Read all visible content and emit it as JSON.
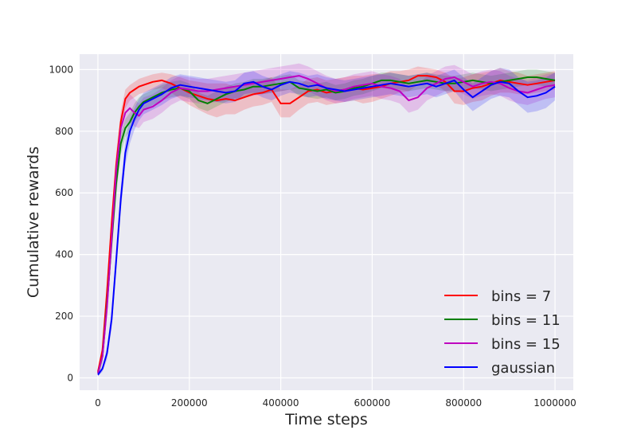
{
  "chart_data": {
    "type": "line",
    "title": "",
    "xlabel": "Time steps",
    "ylabel": "Cumulative rewards",
    "xlim": [
      -40000,
      1040000
    ],
    "ylim": [
      -40,
      1050
    ],
    "x_ticks": [
      0,
      200000,
      400000,
      600000,
      800000,
      1000000
    ],
    "x_tick_labels": [
      "0",
      "200000",
      "400000",
      "600000",
      "800000",
      "1000000"
    ],
    "y_ticks": [
      0,
      200,
      400,
      600,
      800,
      1000
    ],
    "y_tick_labels": [
      "0",
      "200",
      "400",
      "600",
      "800",
      "1000"
    ],
    "grid": true,
    "background": "#EAEAF2",
    "legend_position": "lower-right",
    "x": [
      0,
      10000,
      20000,
      30000,
      40000,
      50000,
      60000,
      70000,
      80000,
      90000,
      100000,
      120000,
      140000,
      160000,
      180000,
      200000,
      220000,
      240000,
      260000,
      280000,
      300000,
      320000,
      340000,
      360000,
      380000,
      400000,
      420000,
      440000,
      460000,
      480000,
      500000,
      520000,
      540000,
      560000,
      580000,
      600000,
      620000,
      640000,
      660000,
      680000,
      700000,
      720000,
      740000,
      760000,
      780000,
      800000,
      820000,
      840000,
      860000,
      880000,
      900000,
      920000,
      940000,
      960000,
      980000,
      1000000
    ],
    "series": [
      {
        "name": "bins = 7",
        "color": "#FF0000",
        "values": [
          20,
          90,
          280,
          500,
          690,
          830,
          905,
          925,
          935,
          945,
          950,
          960,
          965,
          955,
          940,
          925,
          915,
          905,
          900,
          905,
          900,
          910,
          920,
          925,
          935,
          890,
          890,
          910,
          930,
          935,
          925,
          930,
          935,
          940,
          935,
          940,
          945,
          955,
          960,
          965,
          980,
          980,
          975,
          960,
          930,
          930,
          940,
          945,
          955,
          965,
          960,
          955,
          950,
          955,
          960,
          965
        ],
        "band": [
          10,
          20,
          30,
          40,
          40,
          35,
          30,
          25,
          25,
          25,
          25,
          25,
          25,
          30,
          35,
          40,
          45,
          50,
          55,
          50,
          45,
          40,
          40,
          40,
          40,
          45,
          45,
          40,
          40,
          40,
          40,
          40,
          40,
          40,
          45,
          45,
          40,
          40,
          35,
          35,
          30,
          25,
          25,
          30,
          40,
          45,
          45,
          45,
          40,
          40,
          35,
          35,
          30,
          30,
          30,
          30
        ]
      },
      {
        "name": "bins = 11",
        "color": "#008000",
        "values": [
          15,
          70,
          240,
          440,
          630,
          760,
          810,
          830,
          860,
          880,
          895,
          910,
          925,
          935,
          940,
          930,
          900,
          890,
          905,
          920,
          930,
          935,
          945,
          945,
          950,
          955,
          960,
          940,
          935,
          930,
          935,
          925,
          930,
          940,
          945,
          955,
          965,
          965,
          960,
          955,
          960,
          965,
          960,
          955,
          955,
          960,
          965,
          960,
          955,
          960,
          965,
          970,
          975,
          975,
          970,
          965
        ],
        "band": [
          10,
          20,
          30,
          40,
          40,
          35,
          30,
          30,
          30,
          30,
          25,
          25,
          25,
          25,
          25,
          25,
          25,
          25,
          25,
          25,
          25,
          25,
          25,
          25,
          25,
          25,
          25,
          25,
          25,
          25,
          25,
          25,
          25,
          25,
          25,
          25,
          25,
          25,
          25,
          25,
          25,
          25,
          25,
          25,
          25,
          25,
          25,
          25,
          25,
          25,
          25,
          25,
          25,
          25,
          25,
          25
        ]
      },
      {
        "name": "bins = 15",
        "color": "#BF00BF",
        "values": [
          15,
          70,
          230,
          450,
          670,
          810,
          860,
          875,
          860,
          850,
          870,
          880,
          900,
          925,
          940,
          935,
          930,
          930,
          935,
          940,
          945,
          950,
          955,
          960,
          965,
          970,
          975,
          980,
          970,
          955,
          940,
          930,
          935,
          945,
          950,
          955,
          945,
          940,
          930,
          900,
          910,
          940,
          955,
          970,
          975,
          960,
          945,
          955,
          960,
          955,
          940,
          930,
          925,
          935,
          945,
          950
        ],
        "band": [
          10,
          20,
          30,
          40,
          45,
          40,
          40,
          45,
          45,
          40,
          40,
          40,
          40,
          40,
          40,
          40,
          40,
          40,
          40,
          40,
          40,
          40,
          40,
          40,
          40,
          40,
          40,
          40,
          40,
          40,
          40,
          40,
          40,
          40,
          40,
          40,
          40,
          40,
          40,
          40,
          40,
          40,
          40,
          40,
          40,
          40,
          40,
          40,
          40,
          40,
          40,
          40,
          40,
          40,
          40,
          40
        ]
      },
      {
        "name": "gaussian",
        "color": "#0000FF",
        "values": [
          10,
          30,
          80,
          190,
          380,
          580,
          730,
          800,
          840,
          870,
          890,
          905,
          920,
          940,
          950,
          945,
          940,
          935,
          930,
          925,
          930,
          955,
          960,
          945,
          935,
          950,
          960,
          955,
          945,
          950,
          940,
          935,
          930,
          935,
          940,
          945,
          950,
          955,
          950,
          945,
          950,
          955,
          945,
          955,
          965,
          935,
          910,
          930,
          950,
          960,
          955,
          930,
          910,
          915,
          925,
          945
        ],
        "band": [
          5,
          10,
          20,
          30,
          40,
          40,
          40,
          40,
          35,
          35,
          35,
          35,
          35,
          35,
          35,
          35,
          35,
          35,
          35,
          35,
          35,
          35,
          35,
          35,
          35,
          35,
          35,
          35,
          35,
          35,
          35,
          35,
          35,
          35,
          35,
          35,
          35,
          35,
          35,
          35,
          35,
          35,
          35,
          35,
          35,
          40,
          45,
          45,
          45,
          45,
          45,
          45,
          50,
          50,
          50,
          45
        ]
      }
    ]
  }
}
